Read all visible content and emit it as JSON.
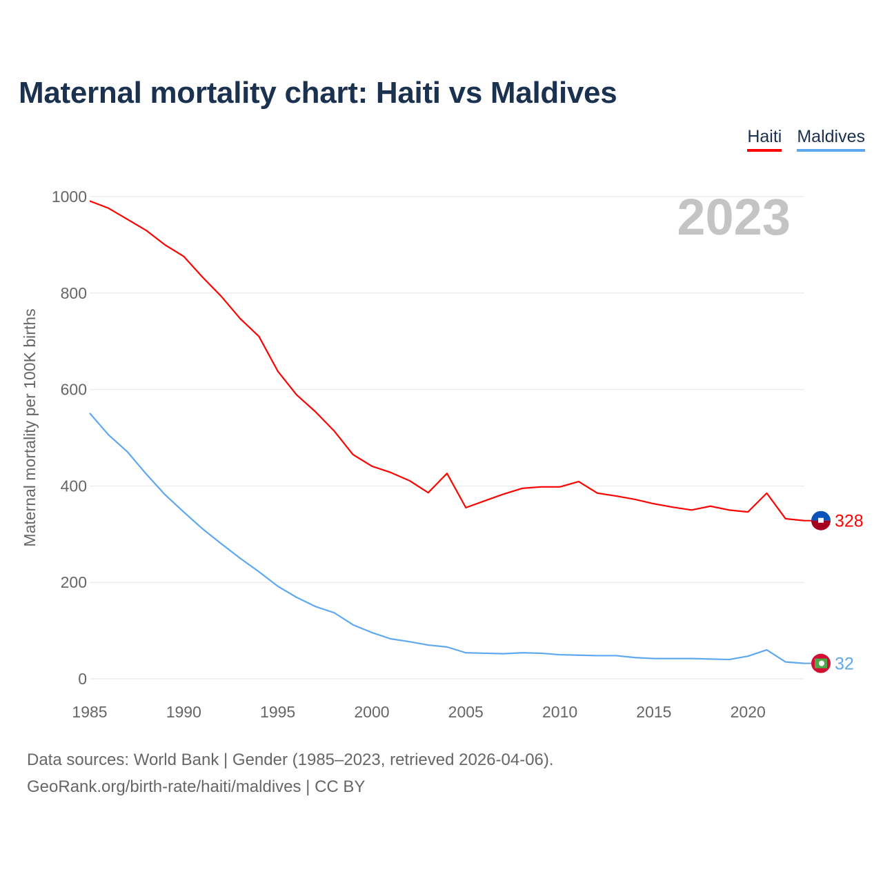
{
  "title": "Maternal mortality chart: Haiti vs Maldives",
  "year_label": "2023",
  "footer": {
    "line1": "Data sources: World Bank | Gender (1985–2023, retrieved 2026-04-06).",
    "line2": "GeoRank.org/birth-rate/haiti/maldives | CC BY"
  },
  "chart_data": {
    "type": "line",
    "title": "Maternal mortality chart: Haiti vs Maldives",
    "xlabel": "",
    "ylabel": "Maternal mortality per 100K births",
    "xlim": [
      1985,
      2023
    ],
    "ylim": [
      0,
      1000
    ],
    "yticks": [
      0,
      200,
      400,
      600,
      800,
      1000
    ],
    "xticks": [
      1985,
      1990,
      1995,
      2000,
      2005,
      2010,
      2015,
      2020
    ],
    "grid": true,
    "legend_position": "top-right",
    "x": [
      1985,
      1986,
      1987,
      1988,
      1989,
      1990,
      1991,
      1992,
      1993,
      1994,
      1995,
      1996,
      1997,
      1998,
      1999,
      2000,
      2001,
      2002,
      2003,
      2004,
      2005,
      2006,
      2007,
      2008,
      2009,
      2010,
      2011,
      2012,
      2013,
      2014,
      2015,
      2016,
      2017,
      2018,
      2019,
      2020,
      2021,
      2022,
      2023
    ],
    "series": [
      {
        "name": "Haiti",
        "color": "#ff0000",
        "end_label": "328",
        "values": [
          991,
          976,
          953,
          930,
          900,
          876,
          833,
          793,
          747,
          710,
          638,
          589,
          554,
          514,
          465,
          441,
          428,
          411,
          386,
          426,
          355,
          369,
          383,
          395,
          398,
          398,
          409,
          385,
          379,
          372,
          363,
          356,
          350,
          358,
          350,
          346,
          385,
          332,
          328
        ]
      },
      {
        "name": "Maldives",
        "color": "#5ea8f0",
        "end_label": "32",
        "values": [
          551,
          506,
          471,
          425,
          382,
          346,
          311,
          280,
          250,
          222,
          192,
          169,
          150,
          137,
          112,
          96,
          83,
          77,
          70,
          66,
          54,
          53,
          52,
          54,
          53,
          50,
          49,
          48,
          48,
          44,
          42,
          42,
          42,
          41,
          40,
          47,
          60,
          35,
          32
        ]
      }
    ]
  }
}
